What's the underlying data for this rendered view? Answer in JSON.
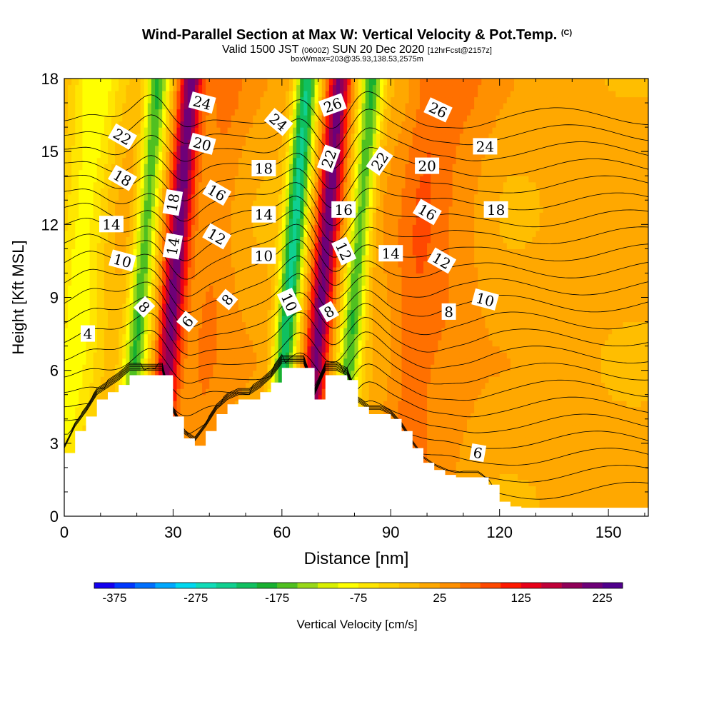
{
  "titles": {
    "main": "Wind-Parallel Section at Max W: Vertical Velocity & Pot.Temp.",
    "main_suffix": "(C)",
    "valid_prefix": "Valid 1500 JST",
    "valid_utc": "(0600Z)",
    "valid_date": "SUN 20 Dec 2020",
    "forecast": "[12hrFcst@2157z]",
    "box_info": "boxWmax=203@35.93,138.53,2575m"
  },
  "chart_data": {
    "type": "heatmap",
    "title": "Wind-Parallel Section at Max W: Vertical Velocity & Pot.Temp.",
    "xlabel": "Distance [nm]",
    "ylabel": "Height [Kft MSL]",
    "xlim": [
      0,
      161
    ],
    "ylim": [
      0,
      18
    ],
    "x_ticks": [
      0,
      30,
      60,
      90,
      120,
      150
    ],
    "y_ticks": [
      0,
      3,
      6,
      9,
      12,
      15,
      18
    ],
    "colorbar": {
      "label": "Vertical Velocity [cm/s]",
      "ticks": [
        -375,
        -275,
        -175,
        -75,
        25,
        125,
        225
      ],
      "range": [
        -400,
        250
      ],
      "colors": [
        "#1400f0",
        "#0038ff",
        "#0070ff",
        "#00a8ff",
        "#00d8f0",
        "#10dcb8",
        "#10d090",
        "#10c060",
        "#18b030",
        "#50c020",
        "#98d818",
        "#d8f000",
        "#ffff00",
        "#ffe600",
        "#ffd200",
        "#ffbe00",
        "#ffa800",
        "#ff9000",
        "#ff7000",
        "#ff4800",
        "#ff1800",
        "#e80018",
        "#c00038",
        "#900058",
        "#6e0078",
        "#50008c"
      ]
    },
    "velocity_features": [
      {
        "type": "updraft",
        "x_center": 30,
        "peak_cm_s": 200
      },
      {
        "type": "downdraft",
        "x_center": 21,
        "peak_cm_s": -180
      },
      {
        "type": "updraft",
        "x_center": 71,
        "peak_cm_s": 203
      },
      {
        "type": "downdraft",
        "x_center": 62,
        "peak_cm_s": -240
      },
      {
        "type": "downdraft",
        "x_center": 80,
        "peak_cm_s": -180
      },
      {
        "type": "downdraft",
        "x_center": 4,
        "peak_cm_s": -100
      },
      {
        "type": "updraft",
        "x_center": 40,
        "peak_cm_s": 40
      },
      {
        "type": "updraft",
        "x_center": 97,
        "peak_cm_s": 60
      },
      {
        "type": "updraft",
        "x_center": 108,
        "peak_cm_s": 30
      }
    ],
    "terrain": {
      "x": [
        0,
        3,
        6,
        9,
        12,
        15,
        18,
        21,
        24,
        27,
        30,
        33,
        36,
        39,
        42,
        45,
        48,
        51,
        54,
        57,
        60,
        63,
        66,
        69,
        72,
        75,
        78,
        81,
        84,
        87,
        90,
        93,
        96,
        99,
        102,
        105,
        108,
        111,
        114,
        117,
        120,
        123,
        126,
        129,
        132,
        135,
        138,
        141,
        144,
        147,
        150,
        153,
        156,
        159,
        161
      ],
      "height_kft": [
        2.6,
        3.5,
        4.1,
        4.8,
        5.1,
        5.4,
        5.8,
        5.8,
        5.8,
        5.8,
        4.1,
        3.2,
        2.9,
        3.5,
        4.2,
        4.6,
        4.8,
        4.8,
        5.1,
        5.5,
        6.1,
        6.1,
        6.1,
        4.8,
        5.8,
        5.8,
        5.6,
        4.5,
        4.2,
        4.2,
        4.0,
        3.5,
        2.8,
        2.2,
        1.9,
        1.7,
        1.6,
        1.6,
        1.6,
        1.3,
        0.6,
        0.4,
        0.35,
        0.35,
        0.35,
        0.35,
        0.35,
        0.35,
        0.35,
        0.35,
        0.35,
        0.35,
        0.35,
        0.35,
        0.35
      ]
    },
    "theta_contours": {
      "interval": 1,
      "lowest": 4,
      "highest": 26,
      "labels": [
        {
          "value": "4",
          "x": 6.5,
          "y": 7.5,
          "angle": 0
        },
        {
          "value": "8",
          "x": 22,
          "y": 8.6,
          "angle": 45
        },
        {
          "value": "6",
          "x": 34,
          "y": 8.0,
          "angle": -50
        },
        {
          "value": "8",
          "x": 45,
          "y": 8.9,
          "angle": -50
        },
        {
          "value": "10",
          "x": 16,
          "y": 10.5,
          "angle": 15
        },
        {
          "value": "14",
          "x": 30,
          "y": 11.1,
          "angle": -80
        },
        {
          "value": "12",
          "x": 42,
          "y": 11.5,
          "angle": 30
        },
        {
          "value": "10",
          "x": 55,
          "y": 10.7,
          "angle": 0
        },
        {
          "value": "10",
          "x": 62,
          "y": 8.8,
          "angle": 65
        },
        {
          "value": "8",
          "x": 73,
          "y": 8.4,
          "angle": -30
        },
        {
          "value": "12",
          "x": 77,
          "y": 10.9,
          "angle": 65
        },
        {
          "value": "14",
          "x": 90,
          "y": 10.8,
          "angle": 0
        },
        {
          "value": "12",
          "x": 104,
          "y": 10.5,
          "angle": 30
        },
        {
          "value": "10",
          "x": 116,
          "y": 8.9,
          "angle": 15
        },
        {
          "value": "8",
          "x": 106,
          "y": 8.4,
          "angle": 0
        },
        {
          "value": "6",
          "x": 114,
          "y": 2.6,
          "angle": 10
        },
        {
          "value": "14",
          "x": 13,
          "y": 12.0,
          "angle": 0
        },
        {
          "value": "18",
          "x": 30,
          "y": 12.9,
          "angle": -80
        },
        {
          "value": "16",
          "x": 42,
          "y": 13.3,
          "angle": 30
        },
        {
          "value": "14",
          "x": 55,
          "y": 12.4,
          "angle": 0
        },
        {
          "value": "16",
          "x": 77,
          "y": 12.6,
          "angle": 0
        },
        {
          "value": "16",
          "x": 100,
          "y": 12.5,
          "angle": 30
        },
        {
          "value": "18",
          "x": 119,
          "y": 12.6,
          "angle": 0
        },
        {
          "value": "18",
          "x": 16,
          "y": 13.9,
          "angle": 30
        },
        {
          "value": "18",
          "x": 55,
          "y": 14.3,
          "angle": 0
        },
        {
          "value": "20",
          "x": 38,
          "y": 15.3,
          "angle": 15
        },
        {
          "value": "22",
          "x": 73,
          "y": 14.7,
          "angle": -70
        },
        {
          "value": "22",
          "x": 87,
          "y": 14.6,
          "angle": -55
        },
        {
          "value": "20",
          "x": 100,
          "y": 14.4,
          "angle": 0
        },
        {
          "value": "24",
          "x": 116,
          "y": 15.2,
          "angle": 0
        },
        {
          "value": "22",
          "x": 16,
          "y": 15.6,
          "angle": 30
        },
        {
          "value": "24",
          "x": 59,
          "y": 16.2,
          "angle": 40
        },
        {
          "value": "24",
          "x": 38,
          "y": 17.0,
          "angle": 15
        },
        {
          "value": "26",
          "x": 74,
          "y": 16.9,
          "angle": -20
        },
        {
          "value": "26",
          "x": 103,
          "y": 16.7,
          "angle": 25
        }
      ]
    }
  }
}
